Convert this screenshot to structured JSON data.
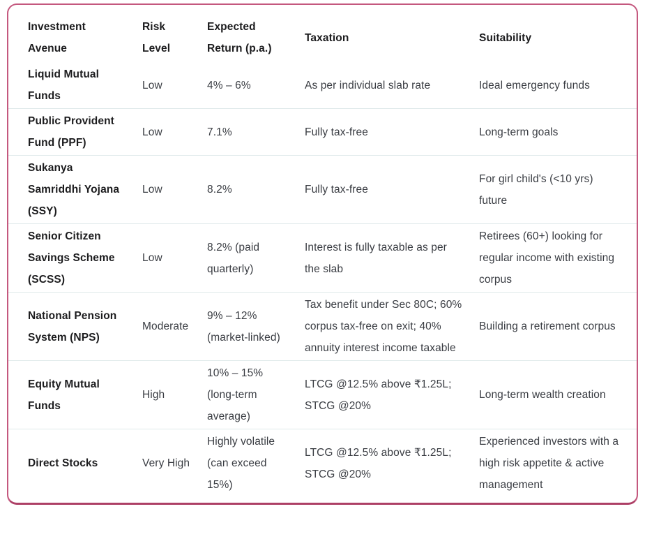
{
  "chart_data": {
    "type": "table",
    "columns": [
      "Investment Avenue",
      "Risk Level",
      "Expected Return (p.a.)",
      "Taxation",
      "Suitability"
    ],
    "rows": [
      [
        "Liquid Mutual Funds",
        "Low",
        "4% – 6%",
        "As per individual slab rate",
        "Ideal emergency funds"
      ],
      [
        "Public Provident Fund (PPF)",
        "Low",
        "7.1%",
        "Fully tax-free",
        "Long-term goals"
      ],
      [
        "Sukanya Samriddhi Yojana (SSY)",
        "Low",
        "8.2%",
        "Fully tax-free",
        "For girl child's (<10 yrs) future"
      ],
      [
        "Senior Citizen Savings Scheme (SCSS)",
        "Low",
        "8.2% (paid quarterly)",
        "Interest is fully taxable as per the slab",
        "Retirees (60+) looking for regular income with existing corpus"
      ],
      [
        "National Pension System (NPS)",
        "Moderate",
        "9% – 12% (market-linked)",
        "Tax benefit under Sec 80C; 60% corpus tax-free on exit; 40% annuity interest income taxable",
        "Building a retirement corpus"
      ],
      [
        "Equity Mutual Funds",
        "High",
        "10% – 15% (long-term average)",
        "LTCG @12.5% above ₹1.25L; STCG @20%",
        "Long-term wealth creation"
      ],
      [
        "Direct Stocks",
        "Very High",
        "Highly volatile (can exceed 15%)",
        "LTCG @12.5% above ₹1.25L; STCG @20%",
        "Experienced investors with a high risk appetite & active management"
      ]
    ],
    "layout": {
      "grid": "horizontal row dividers only, none below header",
      "legend_position": "none"
    }
  },
  "style": {
    "card_border": "#c4587e",
    "card_border_bottom": "#ad3f66",
    "row_divider": "#dfe9ea",
    "heading_text": "#1c1c1e",
    "body_text": "#393c42",
    "background": "#ffffff"
  }
}
